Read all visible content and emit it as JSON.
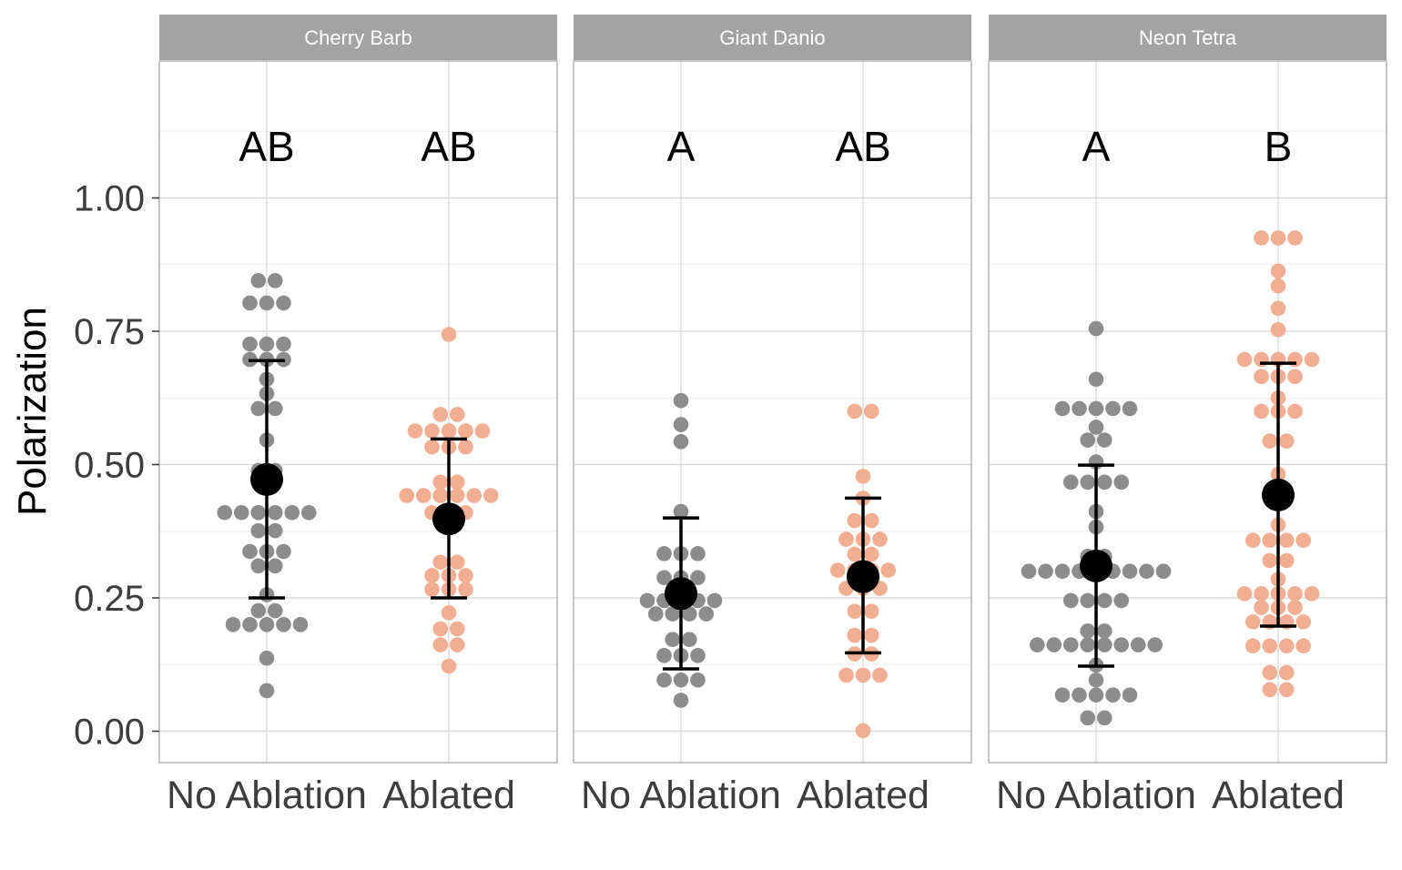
{
  "chart_data": {
    "type": "scatter",
    "title": "",
    "xlabel": "",
    "ylabel": "Polarization",
    "ylim": [
      -0.06,
      1.27
    ],
    "yticks": [
      0.0,
      0.25,
      0.5,
      0.75,
      1.0
    ],
    "ytick_labels": [
      "0.00",
      "0.25",
      "0.50",
      "0.75",
      "1.00"
    ],
    "categories": [
      "No Ablation",
      "Ablated"
    ],
    "colors": {
      "No Ablation": "#8c8c8c",
      "Ablated": "#f2ae92",
      "summary": "#000000",
      "strip": "#a3a3a3",
      "grid": "#dcdcdc",
      "panel_border": "#b3b3b3"
    },
    "panels": [
      {
        "name": "Cherry Barb",
        "groups": [
          {
            "category": "No Ablation",
            "letter": "AB",
            "mean": 0.472,
            "lower": 0.25,
            "upper": 0.695,
            "points": [
              0.845,
              0.845,
              0.803,
              0.803,
              0.803,
              0.726,
              0.726,
              0.726,
              0.697,
              0.697,
              0.697,
              0.66,
              0.633,
              0.605,
              0.605,
              0.546,
              0.489,
              0.489,
              0.41,
              0.41,
              0.41,
              0.41,
              0.41,
              0.41,
              0.376,
              0.376,
              0.337,
              0.337,
              0.337,
              0.31,
              0.31,
              0.256,
              0.226,
              0.226,
              0.2,
              0.2,
              0.2,
              0.2,
              0.2,
              0.137,
              0.076
            ]
          },
          {
            "category": "Ablated",
            "letter": "AB",
            "mean": 0.398,
            "lower": 0.25,
            "upper": 0.548,
            "points": [
              0.744,
              0.594,
              0.594,
              0.563,
              0.563,
              0.563,
              0.563,
              0.563,
              0.533,
              0.533,
              0.533,
              0.467,
              0.467,
              0.442,
              0.442,
              0.442,
              0.442,
              0.442,
              0.442,
              0.41,
              0.41,
              0.41,
              0.317,
              0.317,
              0.292,
              0.292,
              0.292,
              0.266,
              0.266,
              0.266,
              0.222,
              0.192,
              0.192,
              0.162,
              0.162,
              0.122
            ]
          }
        ]
      },
      {
        "name": "Giant Danio",
        "groups": [
          {
            "category": "No Ablation",
            "letter": "A",
            "mean": 0.258,
            "lower": 0.117,
            "upper": 0.4,
            "points": [
              0.62,
              0.575,
              0.543,
              0.412,
              0.333,
              0.333,
              0.333,
              0.288,
              0.288,
              0.288,
              0.245,
              0.245,
              0.245,
              0.245,
              0.245,
              0.22,
              0.22,
              0.22,
              0.22,
              0.172,
              0.172,
              0.142,
              0.142,
              0.142,
              0.096,
              0.096,
              0.096,
              0.058
            ]
          },
          {
            "category": "Ablated",
            "letter": "AB",
            "mean": 0.29,
            "lower": 0.147,
            "upper": 0.437,
            "points": [
              0.6,
              0.6,
              0.478,
              0.437,
              0.395,
              0.395,
              0.36,
              0.36,
              0.36,
              0.332,
              0.332,
              0.302,
              0.302,
              0.302,
              0.302,
              0.268,
              0.268,
              0.268,
              0.225,
              0.225,
              0.18,
              0.18,
              0.145,
              0.145,
              0.105,
              0.105,
              0.105,
              0.001
            ]
          }
        ]
      },
      {
        "name": "Neon Tetra",
        "groups": [
          {
            "category": "No Ablation",
            "letter": "A",
            "mean": 0.31,
            "lower": 0.122,
            "upper": 0.499,
            "points": [
              0.755,
              0.66,
              0.605,
              0.605,
              0.605,
              0.605,
              0.605,
              0.57,
              0.546,
              0.546,
              0.505,
              0.467,
              0.467,
              0.467,
              0.467,
              0.412,
              0.383,
              0.328,
              0.328,
              0.3,
              0.3,
              0.3,
              0.3,
              0.3,
              0.3,
              0.3,
              0.3,
              0.3,
              0.245,
              0.245,
              0.245,
              0.245,
              0.188,
              0.188,
              0.162,
              0.162,
              0.162,
              0.162,
              0.162,
              0.162,
              0.162,
              0.162,
              0.124,
              0.096,
              0.068,
              0.068,
              0.068,
              0.068,
              0.068,
              0.025,
              0.025
            ]
          },
          {
            "category": "Ablated",
            "letter": "B",
            "mean": 0.443,
            "lower": 0.197,
            "upper": 0.69,
            "points": [
              0.925,
              0.925,
              0.925,
              0.863,
              0.835,
              0.793,
              0.753,
              0.697,
              0.697,
              0.697,
              0.697,
              0.697,
              0.665,
              0.665,
              0.665,
              0.625,
              0.6,
              0.6,
              0.6,
              0.544,
              0.544,
              0.482,
              0.387,
              0.358,
              0.358,
              0.358,
              0.358,
              0.32,
              0.32,
              0.285,
              0.258,
              0.258,
              0.258,
              0.258,
              0.258,
              0.232,
              0.232,
              0.232,
              0.205,
              0.205,
              0.205,
              0.205,
              0.16,
              0.16,
              0.16,
              0.16,
              0.11,
              0.11,
              0.078,
              0.078
            ]
          }
        ]
      }
    ]
  }
}
